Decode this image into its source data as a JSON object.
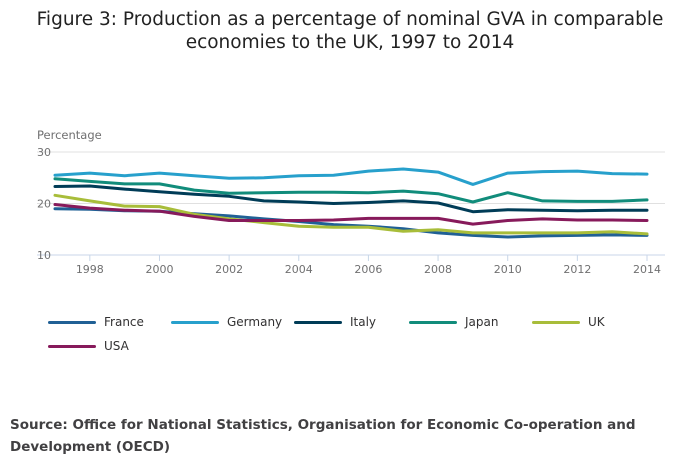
{
  "chart_data": {
    "type": "line",
    "title": "Figure 3: Production as a percentage of nominal GVA in comparable economies to the UK, 1997 to 2014",
    "title_lines": [
      "Figure 3: Production as a percentage of nominal GVA in comparable",
      "economies to the UK, 1997 to 2014"
    ],
    "xlabel": "",
    "ylabel": "Percentage",
    "x": [
      1997,
      1998,
      1999,
      2000,
      2001,
      2002,
      2003,
      2004,
      2005,
      2006,
      2007,
      2008,
      2009,
      2010,
      2011,
      2012,
      2013,
      2014
    ],
    "xticks": [
      "1998",
      "2000",
      "2002",
      "2004",
      "2006",
      "2008",
      "2010",
      "2012",
      "2014"
    ],
    "yticks": [
      "10",
      "20",
      "30"
    ],
    "ylim": [
      10,
      30
    ],
    "grid": true,
    "legend_position": "bottom",
    "series": [
      {
        "name": "France",
        "color": "#206095",
        "values": [
          19.0,
          18.9,
          18.6,
          18.5,
          18.0,
          17.6,
          17.0,
          16.5,
          15.9,
          15.6,
          15.1,
          14.3,
          13.8,
          13.5,
          13.7,
          13.8,
          13.9,
          13.8
        ]
      },
      {
        "name": "Germany",
        "color": "#27a0cc",
        "values": [
          25.5,
          25.9,
          25.4,
          25.9,
          25.4,
          24.9,
          25.0,
          25.4,
          25.5,
          26.3,
          26.7,
          26.1,
          23.7,
          25.9,
          26.2,
          26.3,
          25.8,
          25.7
        ]
      },
      {
        "name": "Italy",
        "color": "#003c57",
        "values": [
          23.3,
          23.4,
          22.8,
          22.3,
          21.8,
          21.4,
          20.5,
          20.3,
          20.0,
          20.2,
          20.5,
          20.1,
          18.4,
          18.8,
          18.7,
          18.6,
          18.7,
          18.7
        ]
      },
      {
        "name": "Japan",
        "color": "#118c7b",
        "values": [
          24.8,
          24.3,
          23.8,
          23.8,
          22.6,
          22.0,
          22.1,
          22.2,
          22.2,
          22.1,
          22.4,
          21.9,
          20.3,
          22.1,
          20.5,
          20.4,
          20.4,
          20.7
        ]
      },
      {
        "name": "UK",
        "color": "#a8bd3a",
        "values": [
          21.6,
          20.5,
          19.5,
          19.4,
          17.9,
          17.0,
          16.3,
          15.6,
          15.4,
          15.4,
          14.6,
          14.9,
          14.3,
          14.3,
          14.3,
          14.3,
          14.5,
          14.1
        ]
      },
      {
        "name": "USA",
        "color": "#871a5b",
        "values": [
          19.8,
          19.1,
          18.7,
          18.5,
          17.5,
          16.7,
          16.7,
          16.7,
          16.8,
          17.1,
          17.1,
          17.1,
          16.0,
          16.7,
          17.0,
          16.8,
          16.8,
          16.7
        ]
      }
    ]
  },
  "source": "Source: Office for National Statistics, Organisation for Economic Co-operation and Development (OECD)"
}
